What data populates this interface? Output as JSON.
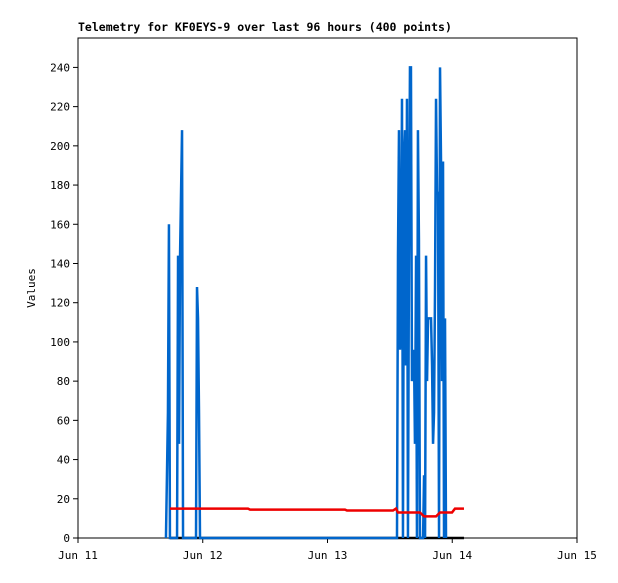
{
  "chart_data": {
    "type": "line",
    "title": "Telemetry for KF0EYS-9 over last 96 hours (400 points)",
    "y_label": "Values",
    "xlim": [
      0,
      4
    ],
    "xticks": [
      {
        "value": 0,
        "label": "Jun 11"
      },
      {
        "value": 1,
        "label": "Jun 12"
      },
      {
        "value": 2,
        "label": "Jun 13"
      },
      {
        "value": 3,
        "label": "Jun 14"
      },
      {
        "value": 4,
        "label": "Jun 15"
      }
    ],
    "ylim": [
      0,
      255
    ],
    "yticks": [
      0,
      20,
      40,
      60,
      80,
      100,
      120,
      140,
      160,
      180,
      200,
      220,
      240
    ],
    "series": [
      {
        "color": "#000000",
        "x": [
          0.737,
          3.094
        ],
        "values": [
          0,
          0
        ]
      },
      {
        "color": "#0066cc",
        "x": [
          0.705,
          0.713,
          0.721,
          0.729,
          0.737,
          0.794,
          0.802,
          0.81,
          0.818,
          0.826,
          0.834,
          0.842,
          0.946,
          0.954,
          0.962,
          0.97,
          0.978,
          2.557,
          2.565,
          2.573,
          2.581,
          2.589,
          2.597,
          2.605,
          2.613,
          2.621,
          2.629,
          2.637,
          2.645,
          2.653,
          2.661,
          2.669,
          2.677,
          2.685,
          2.693,
          2.701,
          2.71,
          2.717,
          2.725,
          2.733,
          2.741,
          2.766,
          2.774,
          2.782,
          2.79,
          2.798,
          2.806,
          2.83,
          2.838,
          2.846,
          2.854,
          2.862,
          2.87,
          2.878,
          2.886,
          2.894,
          2.902,
          2.91,
          2.918,
          2.926,
          2.934,
          2.942,
          2.95
        ],
        "values": [
          0,
          32,
          64,
          160,
          0,
          0,
          144,
          48,
          144,
          176,
          208,
          0,
          0,
          128,
          112,
          64,
          0,
          0,
          144,
          208,
          96,
          112,
          224,
          0,
          192,
          208,
          88,
          224,
          0,
          144,
          240,
          240,
          80,
          88,
          96,
          48,
          144,
          0,
          208,
          152,
          0,
          0,
          32,
          0,
          144,
          80,
          112,
          112,
          88,
          48,
          64,
          128,
          224,
          176,
          176,
          0,
          240,
          192,
          80,
          192,
          0,
          112,
          0
        ]
      },
      {
        "color": "#ee0000",
        "x": [
          0.737,
          1.363,
          1.379,
          2.14,
          2.156,
          2.525,
          2.549,
          2.565,
          2.741,
          2.774,
          2.87,
          2.902,
          2.998,
          3.022,
          3.094
        ],
        "values": [
          15,
          15,
          14.5,
          14.5,
          14,
          14,
          15,
          13,
          13,
          11,
          11,
          13,
          13,
          15,
          15
        ]
      }
    ]
  }
}
